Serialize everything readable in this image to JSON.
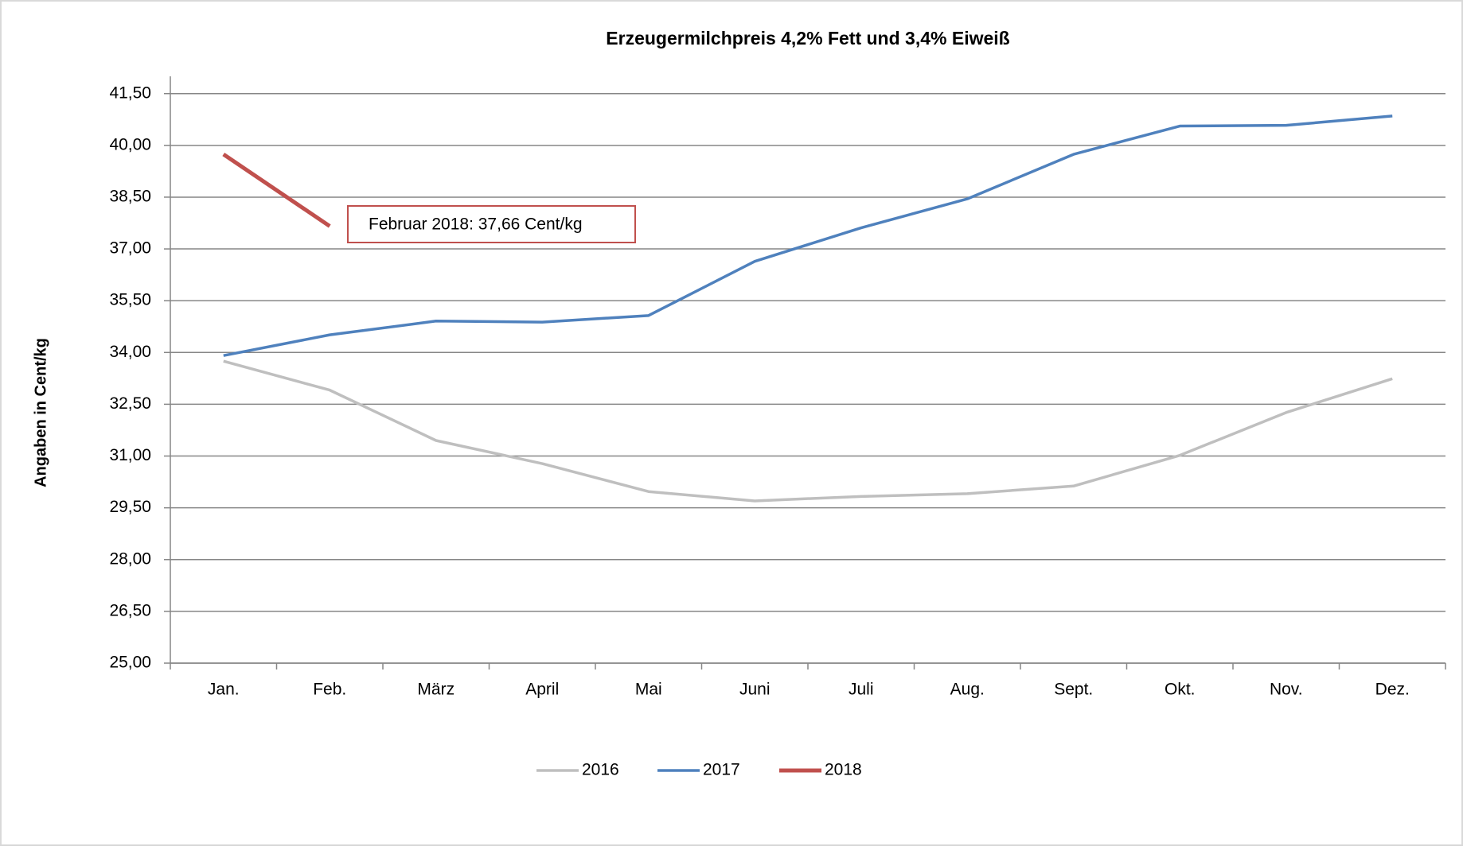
{
  "chart_data": {
    "type": "line",
    "title": "Erzeugermilchpreis 4,2% Fett und 3,4% Eiweiß",
    "y_label": "Angaben in Cent/kg",
    "annotation": "Februar 2018: 37,66 Cent/kg",
    "categories": [
      "Jan.",
      "Feb.",
      "März",
      "April",
      "Mai",
      "Juni",
      "Juli",
      "Aug.",
      "Sept.",
      "Okt.",
      "Nov.",
      "Dez."
    ],
    "series": [
      {
        "name": "2016",
        "color": "#bfbfbf",
        "values": [
          33.75,
          32.91,
          31.45,
          30.78,
          29.97,
          29.7,
          29.83,
          29.91,
          30.13,
          31.02,
          32.26,
          33.24
        ]
      },
      {
        "name": "2017",
        "color": "#4f81bd",
        "values": [
          33.91,
          34.51,
          34.91,
          34.88,
          35.07,
          36.64,
          37.61,
          38.45,
          39.74,
          40.56,
          40.58,
          40.85
        ]
      },
      {
        "name": "2018",
        "color": "#c0504d",
        "values": [
          39.74,
          37.66,
          null,
          null,
          null,
          null,
          null,
          null,
          null,
          null,
          null,
          null
        ]
      }
    ],
    "ylim": [
      25,
      42
    ],
    "yticks": [
      {
        "value": 25,
        "label": "25,00"
      },
      {
        "value": 26.5,
        "label": "26,50"
      },
      {
        "value": 28,
        "label": "28,00"
      },
      {
        "value": 29.5,
        "label": "29,50"
      },
      {
        "value": 31,
        "label": "31,00"
      },
      {
        "value": 32.5,
        "label": "32,50"
      },
      {
        "value": 34,
        "label": "34,00"
      },
      {
        "value": 35.5,
        "label": "35,50"
      },
      {
        "value": 37,
        "label": "37,00"
      },
      {
        "value": 38.5,
        "label": "38,50"
      },
      {
        "value": 40,
        "label": "40,00"
      },
      {
        "value": 41.5,
        "label": "41,50"
      }
    ],
    "grid": true,
    "legend": "bottom"
  }
}
